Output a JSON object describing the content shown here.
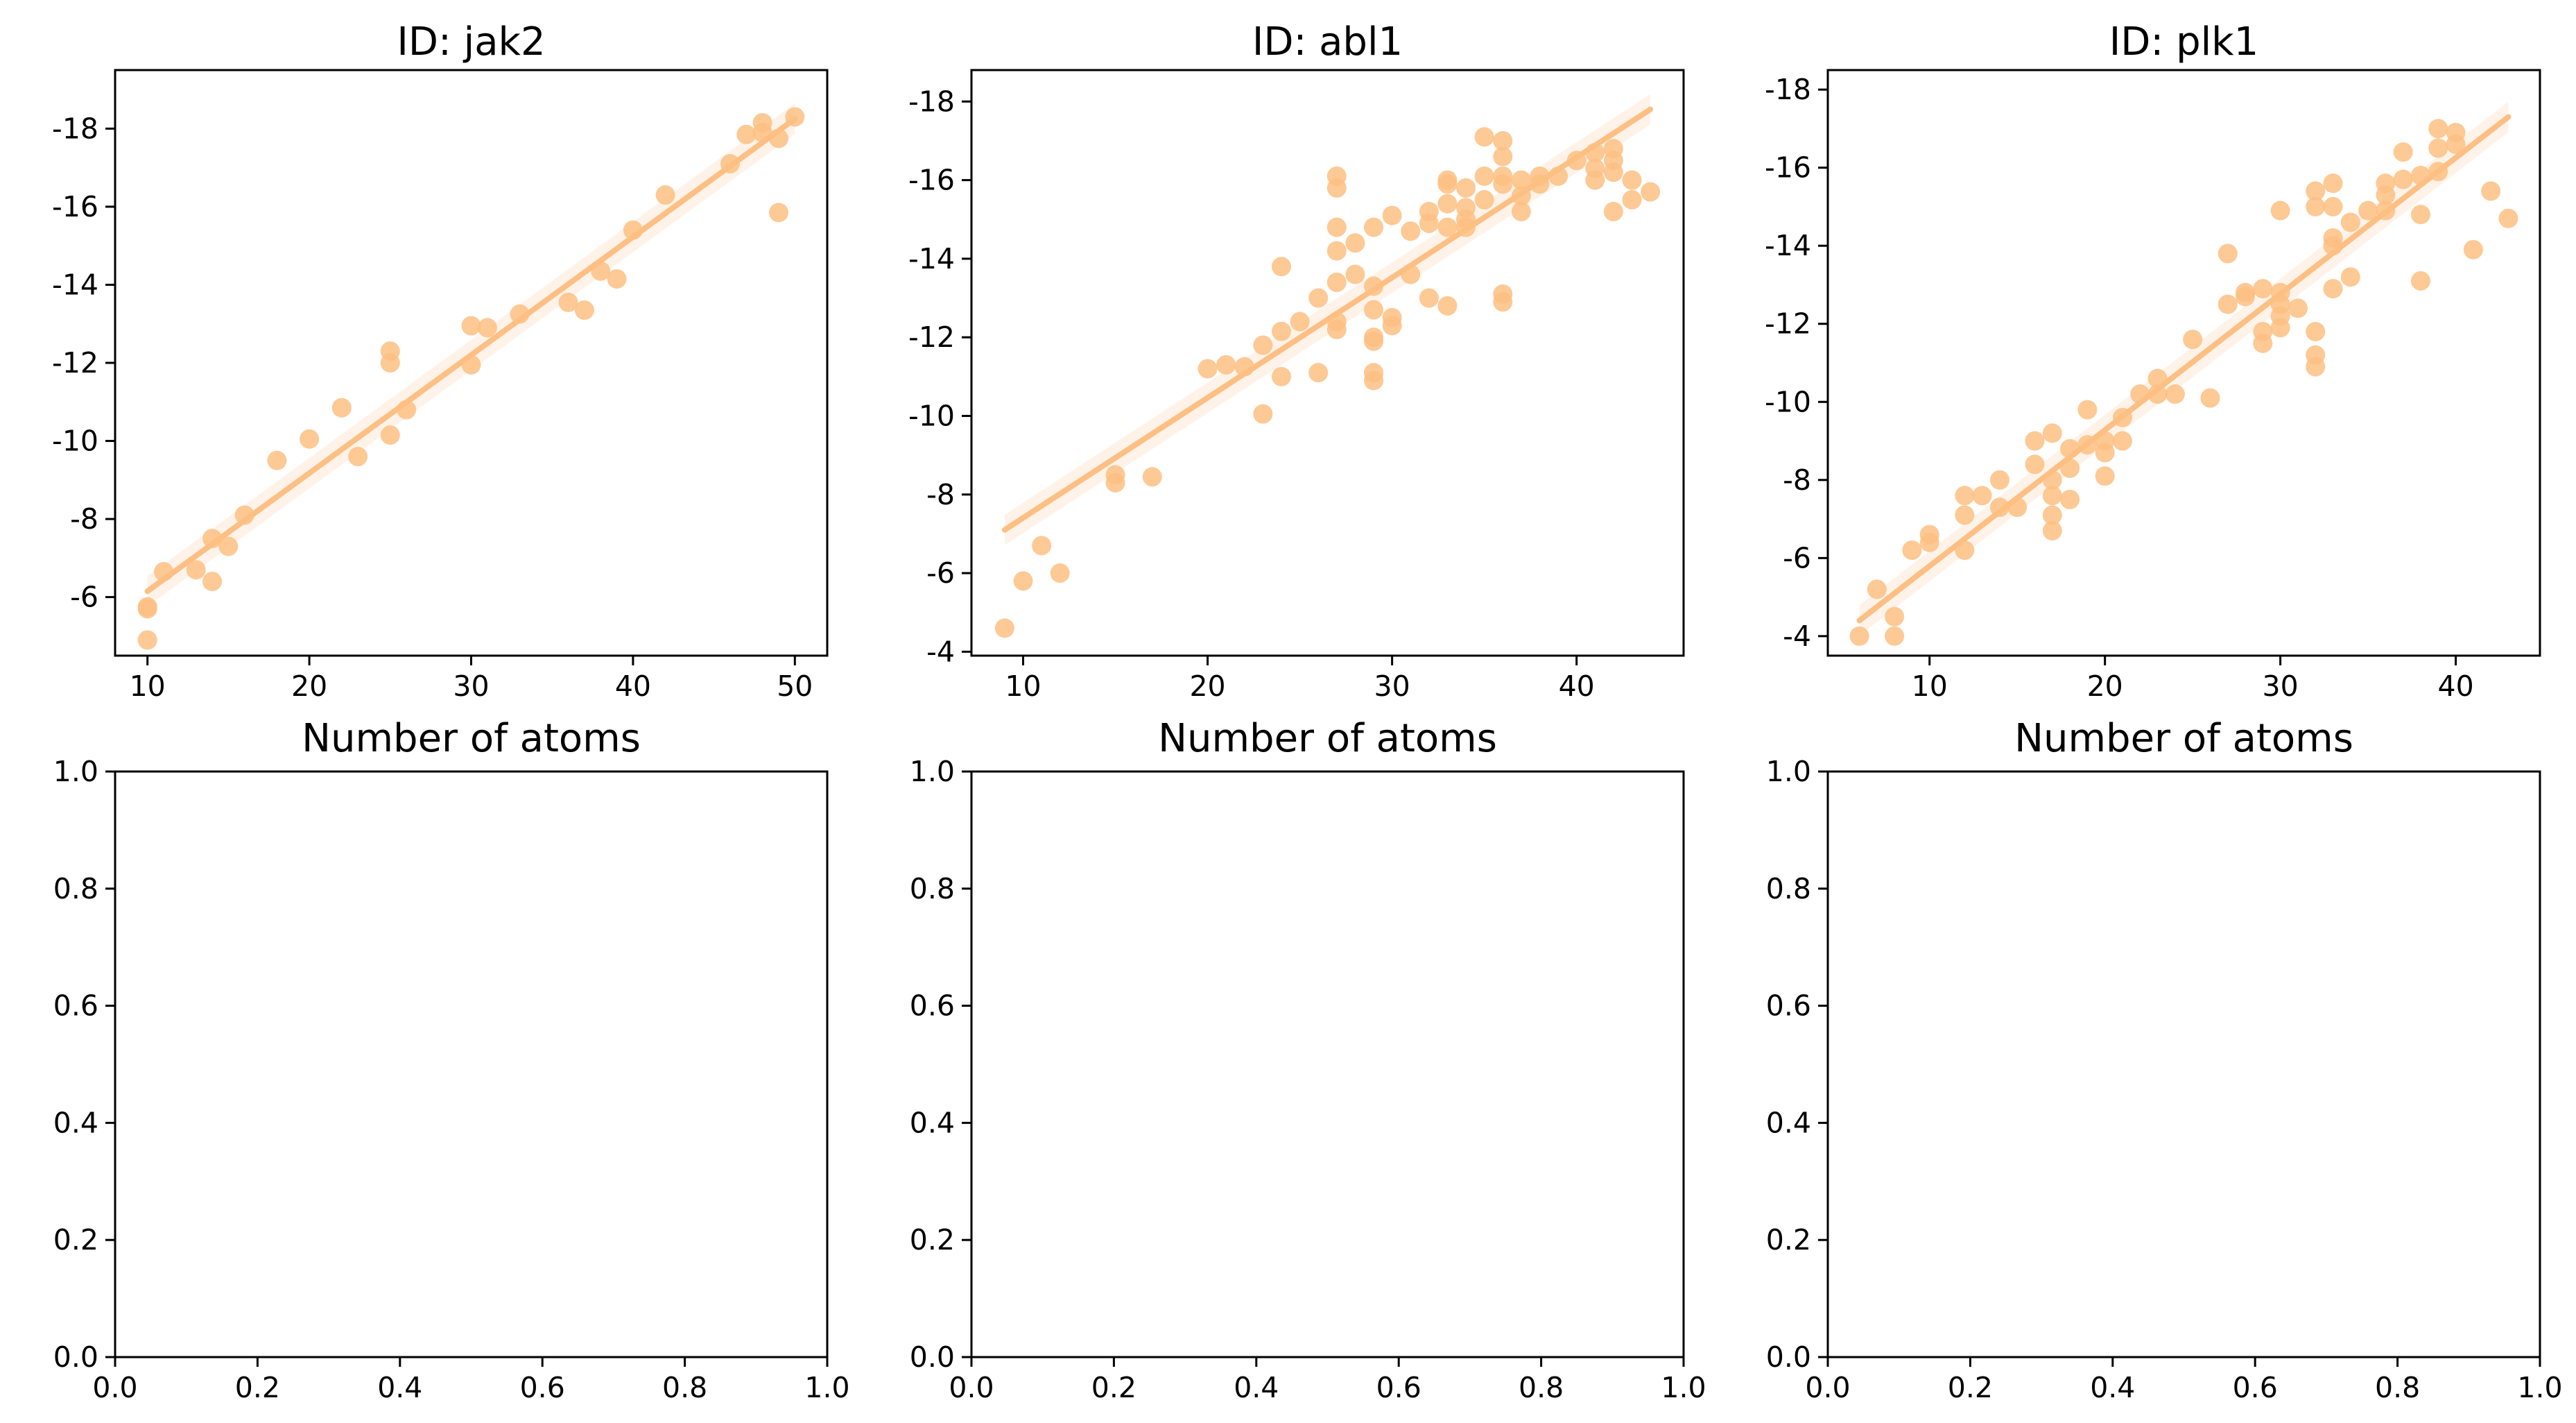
{
  "chart_data": [
    {
      "type": "scatter",
      "title": "ID: jak2",
      "xlabel": "Number of atoms",
      "ylabel": "",
      "xlim": [
        8.0,
        52.0
      ],
      "ylim": [
        -4.5,
        -19.5
      ],
      "y_inverted": true,
      "xticks": [
        10,
        20,
        30,
        40,
        50
      ],
      "yticks": [
        -6,
        -8,
        -10,
        -12,
        -14,
        -16,
        -18
      ],
      "color": "#fdbf83",
      "regression": {
        "x": [
          10,
          50
        ],
        "y": [
          -6.15,
          -18.25
        ]
      },
      "points": {
        "x": [
          10,
          10,
          10,
          11,
          13,
          14,
          14,
          15,
          16,
          18,
          20,
          22,
          23,
          25,
          25,
          25,
          26,
          30,
          30,
          31,
          33,
          36,
          37,
          38,
          39,
          40,
          42,
          46,
          47,
          48,
          48,
          49,
          49,
          50
        ],
        "y": [
          -5.7,
          -5.75,
          -4.9,
          -6.65,
          -6.7,
          -7.5,
          -6.4,
          -7.3,
          -8.1,
          -9.5,
          -10.05,
          -10.85,
          -9.6,
          -12.3,
          -12.0,
          -10.15,
          -10.8,
          -12.95,
          -11.95,
          -12.9,
          -13.25,
          -13.55,
          -13.35,
          -14.35,
          -14.15,
          -15.4,
          -16.3,
          -17.1,
          -17.85,
          -18.15,
          -17.9,
          -17.75,
          -15.85,
          -18.3
        ]
      }
    },
    {
      "type": "scatter",
      "title": "ID: abl1",
      "xlabel": "Number of atoms",
      "ylabel": "",
      "xlim": [
        7.2,
        45.8
      ],
      "ylim": [
        -3.9,
        -18.8
      ],
      "y_inverted": true,
      "xticks": [
        10,
        20,
        30,
        40
      ],
      "yticks": [
        -4,
        -6,
        -8,
        -10,
        -12,
        -14,
        -16,
        -18
      ],
      "color": "#fdbf83",
      "regression": {
        "x": [
          9,
          44
        ],
        "y": [
          -7.1,
          -17.8
        ]
      },
      "points": {
        "x": [
          9,
          10,
          11,
          12,
          15,
          15,
          17,
          20,
          21,
          22,
          23,
          23,
          24,
          24,
          24,
          25,
          26,
          26,
          27,
          27,
          27,
          27,
          27,
          27,
          27,
          28,
          28,
          29,
          29,
          29,
          29,
          29,
          29,
          29,
          30,
          30,
          30,
          31,
          31,
          32,
          32,
          32,
          33,
          33,
          33,
          33,
          33,
          34,
          34,
          34,
          34,
          35,
          35,
          35,
          36,
          36,
          36,
          36,
          36,
          36,
          37,
          37,
          37,
          38,
          38,
          39,
          40,
          41,
          41,
          41,
          42,
          42,
          42,
          42,
          43,
          43,
          44
        ],
        "y": [
          -4.6,
          -5.8,
          -6.7,
          -6.0,
          -8.5,
          -8.3,
          -8.45,
          -11.2,
          -11.3,
          -11.25,
          -11.8,
          -10.05,
          -12.15,
          -11.0,
          -13.8,
          -12.4,
          -11.1,
          -13.0,
          -16.1,
          -15.8,
          -14.8,
          -14.2,
          -13.4,
          -12.4,
          -12.2,
          -14.4,
          -13.6,
          -14.8,
          -13.3,
          -12.7,
          -12.0,
          -11.9,
          -11.1,
          -10.9,
          -15.1,
          -12.5,
          -12.3,
          -14.7,
          -13.6,
          -15.2,
          -14.9,
          -13.0,
          -15.9,
          -15.4,
          -14.8,
          -12.8,
          -16.0,
          -15.8,
          -15.3,
          -15.0,
          -14.8,
          -17.1,
          -16.1,
          -15.5,
          -17.0,
          -16.6,
          -16.1,
          -15.9,
          -13.1,
          -12.9,
          -16.0,
          -15.6,
          -15.2,
          -16.1,
          -15.9,
          -16.1,
          -16.5,
          -16.7,
          -16.3,
          -16.0,
          -16.8,
          -16.5,
          -16.2,
          -15.2,
          -16.0,
          -15.5,
          -15.7
        ]
      }
    },
    {
      "type": "scatter",
      "title": "ID: plk1",
      "xlabel": "Number of atoms",
      "ylabel": "",
      "xlim": [
        4.2,
        44.8
      ],
      "ylim": [
        -3.5,
        -18.5
      ],
      "y_inverted": true,
      "xticks": [
        10,
        20,
        30,
        40
      ],
      "yticks": [
        -4,
        -6,
        -8,
        -10,
        -12,
        -14,
        -16,
        -18
      ],
      "color": "#fdbf83",
      "regression": {
        "x": [
          6,
          43
        ],
        "y": [
          -4.4,
          -17.3
        ]
      },
      "points": {
        "x": [
          6,
          7,
          8,
          8,
          9,
          10,
          10,
          12,
          12,
          12,
          13,
          14,
          14,
          15,
          16,
          16,
          17,
          17,
          17,
          17,
          17,
          18,
          18,
          18,
          19,
          19,
          20,
          20,
          20,
          21,
          21,
          22,
          23,
          23,
          24,
          25,
          26,
          27,
          27,
          28,
          28,
          29,
          29,
          29,
          30,
          30,
          30,
          30,
          30,
          31,
          32,
          32,
          32,
          32,
          32,
          33,
          33,
          33,
          33,
          33,
          34,
          34,
          35,
          36,
          36,
          36,
          37,
          37,
          38,
          38,
          38,
          39,
          39,
          39,
          40,
          40,
          41,
          42,
          43
        ],
        "y": [
          -4.0,
          -5.2,
          -4.5,
          -4.0,
          -6.2,
          -6.6,
          -6.4,
          -7.6,
          -7.1,
          -6.2,
          -7.6,
          -8.0,
          -7.3,
          -7.3,
          -9.0,
          -8.4,
          -9.2,
          -8.0,
          -7.6,
          -7.1,
          -6.7,
          -8.8,
          -8.3,
          -7.5,
          -9.8,
          -8.9,
          -9.0,
          -8.7,
          -8.1,
          -9.6,
          -9.0,
          -10.2,
          -10.6,
          -10.2,
          -10.2,
          -11.6,
          -10.1,
          -13.8,
          -12.5,
          -12.8,
          -12.7,
          -12.9,
          -11.8,
          -11.5,
          -14.9,
          -12.8,
          -12.5,
          -12.2,
          -11.9,
          -12.4,
          -15.4,
          -15.0,
          -11.8,
          -11.2,
          -10.9,
          -15.6,
          -15.0,
          -14.2,
          -14.0,
          -12.9,
          -14.6,
          -13.2,
          -14.9,
          -15.6,
          -15.3,
          -14.9,
          -16.4,
          -15.7,
          -15.8,
          -14.8,
          -13.1,
          -17.0,
          -16.5,
          -15.9,
          -16.9,
          -16.6,
          -13.9,
          -15.4,
          -14.7
        ]
      }
    },
    {
      "type": "scatter",
      "title": "",
      "xlabel": "",
      "ylabel": "",
      "xlim": [
        0,
        1
      ],
      "ylim": [
        0,
        1
      ],
      "xticks": [
        0.0,
        0.2,
        0.4,
        0.6,
        0.8,
        1.0
      ],
      "yticks": [
        0.0,
        0.2,
        0.4,
        0.6,
        0.8,
        1.0
      ],
      "points": {
        "x": [],
        "y": []
      }
    },
    {
      "type": "scatter",
      "title": "",
      "xlabel": "",
      "ylabel": "",
      "xlim": [
        0,
        1
      ],
      "ylim": [
        0,
        1
      ],
      "xticks": [
        0.0,
        0.2,
        0.4,
        0.6,
        0.8,
        1.0
      ],
      "yticks": [
        0.0,
        0.2,
        0.4,
        0.6,
        0.8,
        1.0
      ],
      "points": {
        "x": [],
        "y": []
      }
    },
    {
      "type": "scatter",
      "title": "",
      "xlabel": "",
      "ylabel": "",
      "xlim": [
        0,
        1
      ],
      "ylim": [
        0,
        1
      ],
      "xticks": [
        0.0,
        0.2,
        0.4,
        0.6,
        0.8,
        1.0
      ],
      "yticks": [
        0.0,
        0.2,
        0.4,
        0.6,
        0.8,
        1.0
      ],
      "points": {
        "x": [],
        "y": []
      }
    }
  ]
}
